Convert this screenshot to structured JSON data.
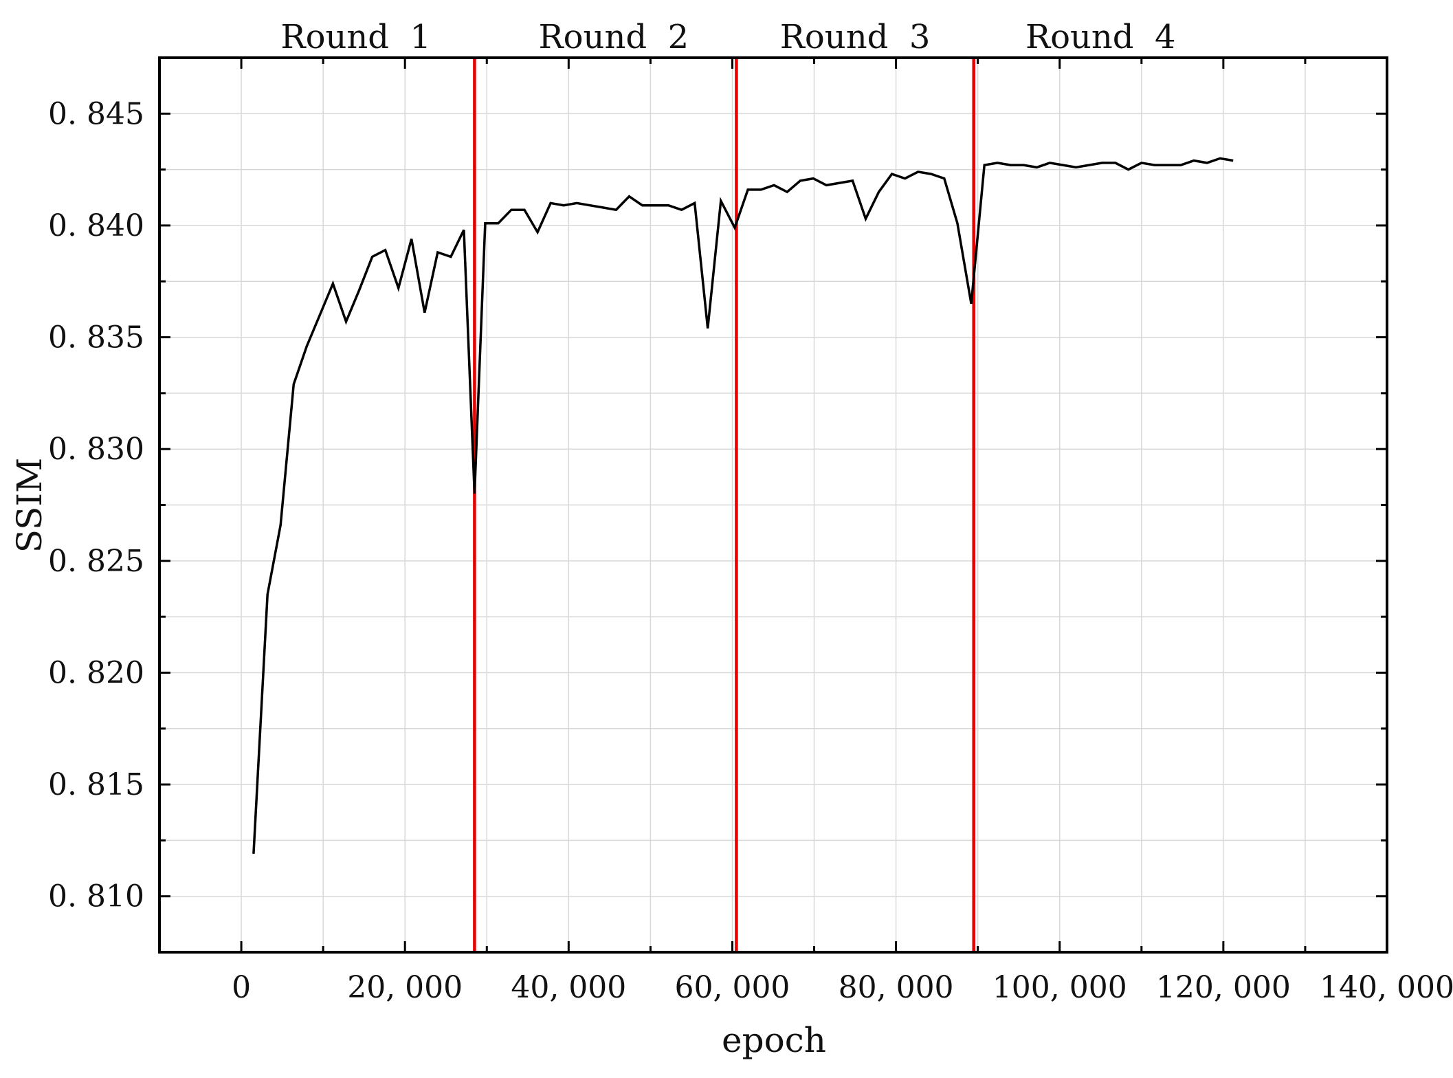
{
  "chart_data": {
    "type": "line",
    "title": "",
    "xlabel": "epoch",
    "ylabel": "SSIM",
    "xlim": [
      -10000,
      140000
    ],
    "ylim": [
      0.8075,
      0.8475
    ],
    "grid": true,
    "x_ticks": [
      0,
      20000,
      40000,
      60000,
      80000,
      100000,
      120000,
      140000
    ],
    "x_tick_labels": [
      "0",
      "20, 000",
      "40, 000",
      "60, 000",
      "80, 000",
      "100, 000",
      "120, 000",
      "140, 000"
    ],
    "y_ticks": [
      0.81,
      0.815,
      0.82,
      0.825,
      0.83,
      0.835,
      0.84,
      0.845
    ],
    "y_tick_labels": [
      "0. 810",
      "0. 815",
      "0. 820",
      "0. 825",
      "0. 830",
      "0. 835",
      "0. 840",
      "0. 845"
    ],
    "round_boundaries": [
      28500,
      60500,
      89500
    ],
    "round_labels": [
      "Round  1",
      "Round  2",
      "Round  3",
      "Round  4"
    ],
    "round_label_x": [
      14000,
      45500,
      75000,
      105000
    ],
    "colors": {
      "line": "#000000",
      "boundary": "#e60000",
      "grid": "#d8d8d8",
      "frame": "#000000"
    },
    "series": [
      {
        "x": [
          1500,
          3200,
          4800,
          6400,
          8000,
          9600,
          11200,
          12800,
          14400,
          16000,
          17600,
          19200,
          20800,
          22400,
          24000,
          25600,
          27200,
          28500,
          29800,
          31400,
          33000,
          34600,
          36200,
          37800,
          39400,
          41000,
          42600,
          44200,
          45800,
          47400,
          49000,
          50600,
          52200,
          53800,
          55400,
          57000,
          58600,
          60300,
          61900,
          63500,
          65100,
          66700,
          68300,
          69900,
          71500,
          73100,
          74700,
          76300,
          77900,
          79500,
          81100,
          82700,
          84300,
          85900,
          87500,
          89200,
          90800,
          92400,
          94000,
          95600,
          97200,
          98800,
          100400,
          102000,
          103600,
          105200,
          106800,
          108400,
          110000,
          111600,
          113200,
          114800,
          116400,
          118000,
          119600,
          121200
        ],
        "y": [
          0.8119,
          0.8235,
          0.8266,
          0.8329,
          0.8346,
          0.836,
          0.8374,
          0.8357,
          0.8371,
          0.8386,
          0.8389,
          0.8372,
          0.8394,
          0.8361,
          0.8388,
          0.8386,
          0.8398,
          0.828,
          0.8401,
          0.8401,
          0.8407,
          0.8407,
          0.8397,
          0.841,
          0.8409,
          0.841,
          0.8409,
          0.8408,
          0.8407,
          0.8413,
          0.8409,
          0.8409,
          0.8409,
          0.8407,
          0.841,
          0.8354,
          0.8411,
          0.8399,
          0.8416,
          0.8416,
          0.8418,
          0.8415,
          0.842,
          0.8421,
          0.8418,
          0.8419,
          0.842,
          0.8403,
          0.8415,
          0.8423,
          0.8421,
          0.8424,
          0.8423,
          0.8421,
          0.8401,
          0.8365,
          0.8427,
          0.8428,
          0.8427,
          0.8427,
          0.8426,
          0.8428,
          0.8427,
          0.8426,
          0.8427,
          0.8428,
          0.8428,
          0.8425,
          0.8428,
          0.8427,
          0.8427,
          0.8427,
          0.8429,
          0.8428,
          0.843,
          0.8429
        ]
      }
    ]
  }
}
